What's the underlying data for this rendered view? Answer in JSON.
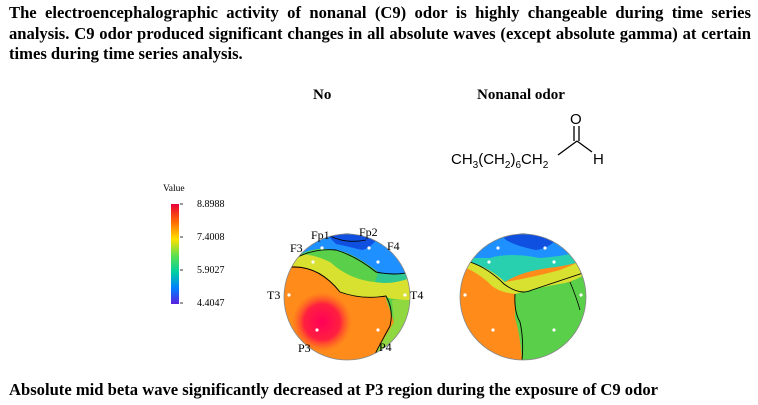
{
  "intro_text": "The electroencephalographic activity of nonanal (C9) odor is highly changeable during time series analysis. C9 odor produced significant changes in all absolute waves (except absolute gamma) at certain times during time series analysis.",
  "panels": {
    "no_label": "No",
    "nonanal_label": "Nonanal odor"
  },
  "molecule": {
    "formula_main": "CH",
    "sub_3": "3",
    "formula_mid": "(CH",
    "sub_2a": "2",
    "formula_close": ")",
    "sub_6": "6",
    "formula_ch": "CH",
    "sub_2b": "2",
    "oxygen": "O",
    "hydrogen": "H"
  },
  "colorbar": {
    "title": "Value",
    "ticks": [
      "8.8988",
      "7.4008",
      "5.9027",
      "4.4047"
    ],
    "colors": [
      "#e8003a",
      "#ff6a00",
      "#ffe000",
      "#5ae050",
      "#00d0a0",
      "#0080ff",
      "#5a20e0"
    ]
  },
  "electrodes": {
    "fp1": "Fp1",
    "fp2": "Fp2",
    "f3": "F3",
    "f4": "F4",
    "t3": "T3",
    "t4": "T4",
    "p3": "P3",
    "p4": "P4"
  },
  "caption": "Absolute mid beta wave significantly decreased at P3 region during the exposure of C9 odor"
}
